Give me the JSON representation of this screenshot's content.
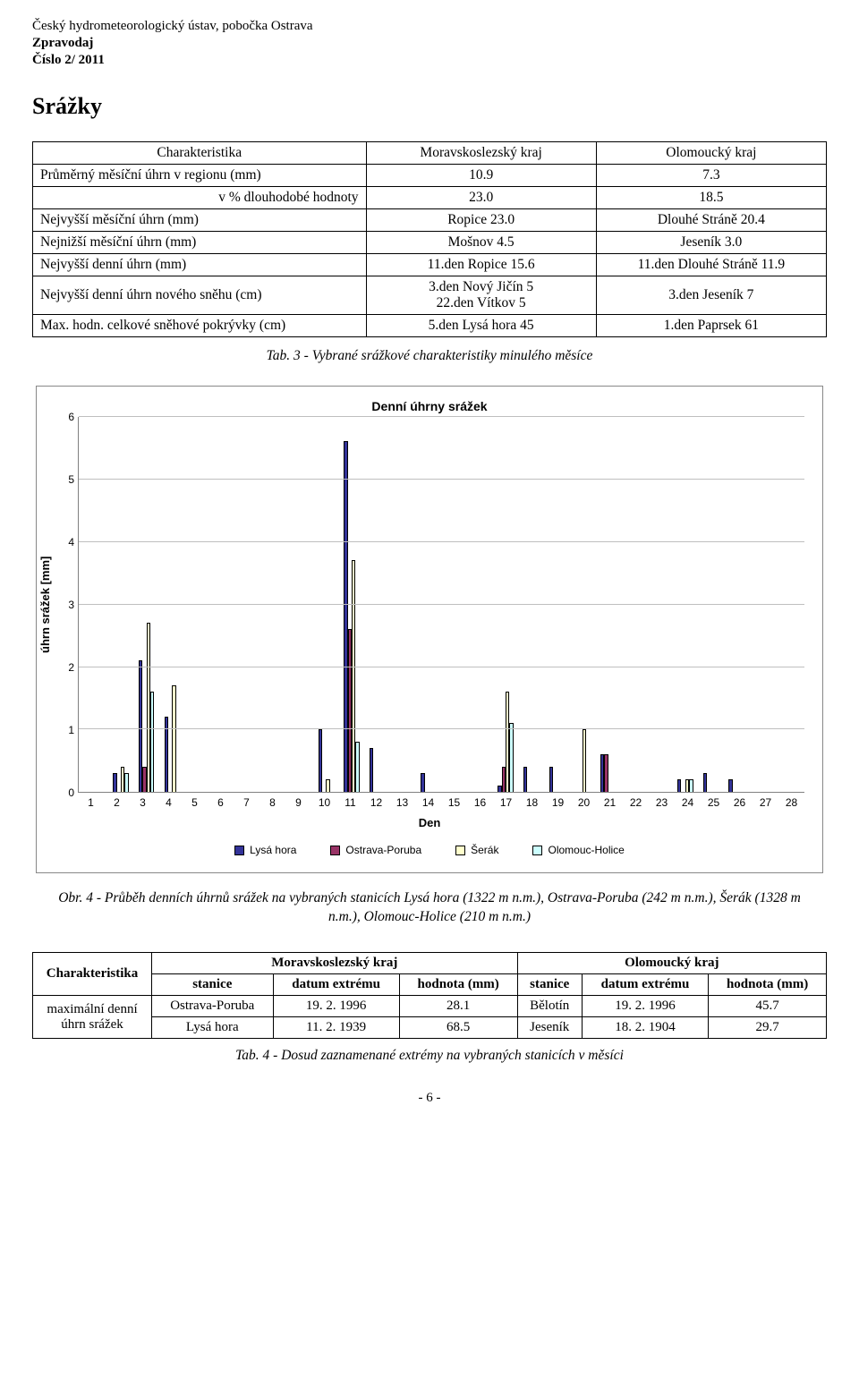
{
  "header": {
    "org": "Český hydrometeorologický ústav, pobočka Ostrava",
    "title": "Zpravodaj",
    "issue": "Číslo 2/ 2011"
  },
  "section_title": "Srážky",
  "table1": {
    "headers": [
      "Charakteristika",
      "Moravskoslezský kraj",
      "Olomoucký kraj"
    ],
    "rows": [
      {
        "label": "Průměrný měsíční úhrn v regionu (mm)",
        "ms": "10.9",
        "ol": "7.3"
      },
      {
        "label": "v % dlouhodobé hodnoty",
        "ms": "23.0",
        "ol": "18.5",
        "label_align": "right"
      },
      {
        "label": "Nejvyšší měsíční úhrn (mm)",
        "ms": "Ropice  23.0",
        "ol": "Dlouhé Stráně  20.4"
      },
      {
        "label": "Nejnižší měsíční úhrn (mm)",
        "ms": "Mošnov  4.5",
        "ol": "Jeseník  3.0"
      },
      {
        "label": "Nejvyšší denní úhrn (mm)",
        "ms": "11.den  Ropice  15.6",
        "ol": "11.den  Dlouhé Stráně  11.9"
      },
      {
        "label": "Nejvyšší denní úhrn nového sněhu (cm)",
        "ms": "3.den  Nový Jičín  5\n22.den Vítkov  5",
        "ol": "3.den  Jeseník  7"
      },
      {
        "label": "Max. hodn. celkové sněhové pokrývky (cm)",
        "ms": "5.den  Lysá hora  45",
        "ol": "1.den  Paprsek  61"
      }
    ]
  },
  "table1_caption": "Tab. 3 - Vybrané srážkové charakteristiky minulého měsíce",
  "chart": {
    "title": "Denní úhrny srážek",
    "y_label": "úhrn srážek [mm]",
    "x_label": "Den",
    "ymax": 6,
    "yticks": [
      6,
      5,
      4,
      3,
      2,
      1,
      0
    ],
    "days": [
      1,
      2,
      3,
      4,
      5,
      6,
      7,
      8,
      9,
      10,
      11,
      12,
      13,
      14,
      15,
      16,
      17,
      18,
      19,
      20,
      21,
      22,
      23,
      24,
      25,
      26,
      27,
      28
    ],
    "series": [
      {
        "name": "Lysá hora",
        "color": "#333399"
      },
      {
        "name": "Ostrava-Poruba",
        "color": "#993366"
      },
      {
        "name": "Šerák",
        "color": "#ffffcc"
      },
      {
        "name": "Olomouc-Holice",
        "color": "#ccffff"
      }
    ],
    "data": {
      "1": [
        0.0,
        0.0,
        0.0,
        0.0
      ],
      "2": [
        0.3,
        0.0,
        0.4,
        0.3
      ],
      "3": [
        2.1,
        0.4,
        2.7,
        1.6
      ],
      "4": [
        1.2,
        0.0,
        1.7,
        0.0
      ],
      "5": [
        0.0,
        0.0,
        0.0,
        0.0
      ],
      "6": [
        0.0,
        0.0,
        0.0,
        0.0
      ],
      "7": [
        0.0,
        0.0,
        0.0,
        0.0
      ],
      "8": [
        0.0,
        0.0,
        0.0,
        0.0
      ],
      "9": [
        0.0,
        0.0,
        0.0,
        0.0
      ],
      "10": [
        1.0,
        0.0,
        0.2,
        0.0
      ],
      "11": [
        5.6,
        2.6,
        3.7,
        0.8
      ],
      "12": [
        0.7,
        0.0,
        0.0,
        0.0
      ],
      "13": [
        0.0,
        0.0,
        0.0,
        0.0
      ],
      "14": [
        0.3,
        0.0,
        0.0,
        0.0
      ],
      "15": [
        0.0,
        0.0,
        0.0,
        0.0
      ],
      "16": [
        0.0,
        0.0,
        0.0,
        0.0
      ],
      "17": [
        0.1,
        0.4,
        1.6,
        1.1
      ],
      "18": [
        0.4,
        0.0,
        0.0,
        0.0
      ],
      "19": [
        0.4,
        0.0,
        0.0,
        0.0
      ],
      "20": [
        0.0,
        0.0,
        1.0,
        0.0
      ],
      "21": [
        0.6,
        0.6,
        0.0,
        0.0
      ],
      "22": [
        0.0,
        0.0,
        0.0,
        0.0
      ],
      "23": [
        0.0,
        0.0,
        0.0,
        0.0
      ],
      "24": [
        0.2,
        0.0,
        0.2,
        0.2
      ],
      "25": [
        0.3,
        0.0,
        0.0,
        0.0
      ],
      "26": [
        0.2,
        0.0,
        0.0,
        0.0
      ],
      "27": [
        0.0,
        0.0,
        0.0,
        0.0
      ],
      "28": [
        0.0,
        0.0,
        0.0,
        0.0
      ]
    }
  },
  "fig_caption": "Obr. 4 - Průběh denních úhrnů srážek na vybraných stanicích Lysá hora (1322 m n.m.), Ostrava-Poruba (242  m n.m.), Šerák (1328 m n.m.), Olomouc-Holice (210 m n.m.)",
  "table2": {
    "col_region1": "Moravskoslezský kraj",
    "col_region2": "Olomoucký kraj",
    "char_label": "Charakteristika",
    "sub_headers1": [
      "stanice",
      "datum extrému",
      "hodnota (mm)"
    ],
    "sub_headers2": [
      "stanice",
      "datum extrému",
      "hodnota (mm)"
    ],
    "row_label": "maximální denní úhrn srážek",
    "rows": [
      [
        "Ostrava-Poruba",
        "19. 2. 1996",
        "28.1",
        "Bělotín",
        "19. 2. 1996",
        "45.7"
      ],
      [
        "Lysá hora",
        "11. 2. 1939",
        "68.5",
        "Jeseník",
        "18. 2. 1904",
        "29.7"
      ]
    ]
  },
  "table2_caption": "Tab. 4 - Dosud zaznamenané extrémy na vybraných stanicích v měsíci",
  "page_number": "- 6 -"
}
